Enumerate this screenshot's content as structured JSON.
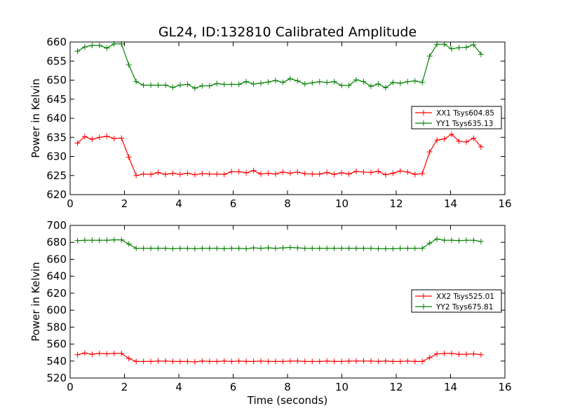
{
  "chart_data": [
    {
      "type": "line",
      "title": "GL24, ID:132810 Calibrated Amplitude",
      "xlabel": "",
      "ylabel": "Power in Kelvin",
      "xlim": [
        0,
        16
      ],
      "ylim": [
        620,
        660
      ],
      "xticks": [
        "0",
        "2",
        "4",
        "6",
        "8",
        "10",
        "12",
        "14",
        "16"
      ],
      "yticks": [
        "620",
        "625",
        "630",
        "635",
        "640",
        "645",
        "650",
        "655",
        "660"
      ],
      "legend_position": "right",
      "x": [
        0.27,
        0.54,
        0.81,
        1.08,
        1.35,
        1.62,
        1.89,
        2.16,
        2.43,
        2.7,
        2.97,
        3.24,
        3.51,
        3.78,
        4.05,
        4.32,
        4.59,
        4.86,
        5.13,
        5.4,
        5.67,
        5.94,
        6.21,
        6.48,
        6.75,
        7.02,
        7.29,
        7.56,
        7.83,
        8.1,
        8.37,
        8.64,
        8.91,
        9.18,
        9.45,
        9.72,
        9.99,
        10.26,
        10.53,
        10.8,
        11.07,
        11.34,
        11.61,
        11.88,
        12.15,
        12.42,
        12.69,
        12.96,
        13.23,
        13.5,
        13.77,
        14.04,
        14.31,
        14.58,
        14.85,
        15.12
      ],
      "series": [
        {
          "name": "XX1 Tsys604.85",
          "color": "#ff0000",
          "values": [
            633.5,
            635.2,
            634.5,
            635.0,
            635.3,
            634.7,
            634.8,
            629.8,
            625.0,
            625.4,
            625.3,
            625.8,
            625.3,
            625.6,
            625.3,
            625.6,
            625.2,
            625.5,
            625.4,
            625.4,
            625.3,
            626.0,
            626.0,
            625.7,
            626.3,
            625.4,
            625.6,
            625.4,
            625.9,
            625.6,
            625.9,
            625.5,
            625.4,
            625.4,
            625.8,
            625.3,
            625.7,
            625.4,
            626.1,
            625.9,
            625.8,
            626.1,
            625.2,
            625.6,
            626.2,
            625.9,
            625.3,
            625.5,
            631.2,
            634.3,
            634.6,
            635.8,
            634.0,
            633.8,
            634.8,
            632.5
          ]
        },
        {
          "name": "YY1 Tsys635.13",
          "color": "#008000",
          "values": [
            657.6,
            658.7,
            659.1,
            659.1,
            658.4,
            659.5,
            659.5,
            654.0,
            649.6,
            648.7,
            648.7,
            648.7,
            648.7,
            648.1,
            648.7,
            648.9,
            647.9,
            648.5,
            648.5,
            649.1,
            648.9,
            648.9,
            648.9,
            649.6,
            649.0,
            649.2,
            649.5,
            649.9,
            649.4,
            650.4,
            649.8,
            649.0,
            649.3,
            649.6,
            649.4,
            649.6,
            648.6,
            648.6,
            650.1,
            649.6,
            648.4,
            649.0,
            648.0,
            649.4,
            649.2,
            649.6,
            649.8,
            649.4,
            656.3,
            659.4,
            659.4,
            658.2,
            658.5,
            658.6,
            659.3,
            656.8
          ]
        }
      ]
    },
    {
      "type": "line",
      "title": "",
      "xlabel": "Time (seconds)",
      "ylabel": "Power in Kelvin",
      "xlim": [
        0,
        16
      ],
      "ylim": [
        520,
        700
      ],
      "xticks": [
        "0",
        "2",
        "4",
        "6",
        "8",
        "10",
        "12",
        "14",
        "16"
      ],
      "yticks": [
        "520",
        "540",
        "560",
        "580",
        "600",
        "620",
        "640",
        "660",
        "680",
        "700"
      ],
      "legend_position": "right",
      "x": [
        0.27,
        0.54,
        0.81,
        1.08,
        1.35,
        1.62,
        1.89,
        2.16,
        2.43,
        2.7,
        2.97,
        3.24,
        3.51,
        3.78,
        4.05,
        4.32,
        4.59,
        4.86,
        5.13,
        5.4,
        5.67,
        5.94,
        6.21,
        6.48,
        6.75,
        7.02,
        7.29,
        7.56,
        7.83,
        8.1,
        8.37,
        8.64,
        8.91,
        9.18,
        9.45,
        9.72,
        9.99,
        10.26,
        10.53,
        10.8,
        11.07,
        11.34,
        11.61,
        11.88,
        12.15,
        12.42,
        12.69,
        12.96,
        13.23,
        13.5,
        13.77,
        14.04,
        14.31,
        14.58,
        14.85,
        15.12
      ],
      "series": [
        {
          "name": "XX2 Tsys525.01",
          "color": "#ff0000",
          "values": [
            547.5,
            549.5,
            548.0,
            549.0,
            548.5,
            549.0,
            549.0,
            543.0,
            539.5,
            539.5,
            539.5,
            540.0,
            540.0,
            539.5,
            539.5,
            539.5,
            539.0,
            540.0,
            539.5,
            539.5,
            540.0,
            539.5,
            540.0,
            539.5,
            539.5,
            540.0,
            539.5,
            539.5,
            539.5,
            540.0,
            540.0,
            539.5,
            539.5,
            539.5,
            540.0,
            539.5,
            539.5,
            540.0,
            540.0,
            540.0,
            540.0,
            539.5,
            540.0,
            539.5,
            539.5,
            540.0,
            539.5,
            539.5,
            544.0,
            548.5,
            549.0,
            549.0,
            548.0,
            548.0,
            548.5,
            547.5
          ]
        },
        {
          "name": "YY2 Tsys675.81",
          "color": "#008000",
          "values": [
            682.0,
            682.5,
            682.5,
            682.5,
            682.5,
            683.0,
            683.0,
            678.0,
            673.0,
            673.0,
            673.0,
            673.0,
            673.0,
            672.5,
            673.0,
            673.0,
            672.5,
            673.0,
            673.0,
            673.0,
            672.5,
            673.0,
            673.0,
            672.5,
            673.5,
            673.0,
            673.5,
            673.0,
            673.5,
            674.0,
            673.5,
            673.0,
            673.0,
            673.0,
            673.0,
            673.0,
            673.0,
            673.0,
            673.0,
            673.0,
            673.0,
            672.5,
            672.5,
            672.5,
            673.0,
            673.0,
            673.0,
            673.0,
            679.0,
            684.0,
            682.5,
            682.5,
            682.0,
            682.5,
            682.5,
            681.0
          ]
        }
      ]
    }
  ]
}
